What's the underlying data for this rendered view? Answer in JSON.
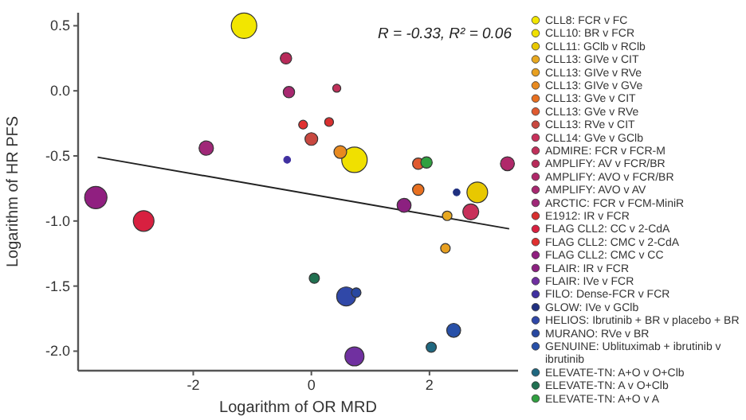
{
  "chart_data": {
    "type": "bubble",
    "xlabel": "Logarithm of OR MRD",
    "ylabel": "Logarithm of HR PFS",
    "annotations": [
      "R = -0.33, R² = 0.06"
    ],
    "xlim": [
      -3.95,
      3.5
    ],
    "ylim": [
      -2.15,
      0.6
    ],
    "xticks": [
      -2,
      0,
      2
    ],
    "yticks": [
      {
        "value": 0.5,
        "label": "0.5"
      },
      {
        "value": 0,
        "label": "0.0"
      },
      {
        "value": -0.5,
        "label": "-0.5"
      },
      {
        "value": -1,
        "label": "-1.0"
      },
      {
        "value": -1.5,
        "label": "-1.5"
      },
      {
        "value": -2,
        "label": "-2.0"
      }
    ],
    "grid": false,
    "legend": "right",
    "marker": "circle",
    "series": [
      {
        "name": "CLL8: FCR v FC",
        "color": "#f2e600",
        "x": [
          -1.14
        ],
        "values": [
          0.5
        ],
        "sizes": [
          1
        ]
      },
      {
        "name": "CLL10: BR v FCR",
        "color": "#f0e000",
        "x": [
          0.73
        ],
        "values": [
          -0.53
        ],
        "sizes": [
          1
        ]
      },
      {
        "name": "CLL11: GClb v RClb",
        "color": "#e8c800",
        "x": [
          2.81
        ],
        "values": [
          -0.78
        ],
        "sizes": [
          0.66
        ]
      },
      {
        "name": "CLL13: GIVe v CIT",
        "color": "#e8a820",
        "x": [
          2.3
        ],
        "values": [
          -0.96
        ],
        "sizes": [
          0.14
        ]
      },
      {
        "name": "CLL13: GIVe v RVe",
        "color": "#e8a020",
        "x": [
          2.27
        ],
        "values": [
          -1.21
        ],
        "sizes": [
          0.14
        ]
      },
      {
        "name": "CLL13: GIVe v GVe",
        "color": "#e88a20",
        "x": [
          0.49
        ],
        "values": [
          -0.47
        ],
        "sizes": [
          0.25
        ]
      },
      {
        "name": "CLL13: GVe v CIT",
        "color": "#e87020",
        "x": [
          1.81
        ],
        "values": [
          -0.76
        ],
        "sizes": [
          0.2
        ]
      },
      {
        "name": "CLL13: GVe v RVe",
        "color": "#e05a30",
        "x": [
          1.81
        ],
        "values": [
          -0.56
        ],
        "sizes": [
          0.2
        ]
      },
      {
        "name": "CLL13: RVe v CIT",
        "color": "#c84840",
        "x": [
          0
        ],
        "values": [
          -0.37
        ],
        "sizes": [
          0.25
        ]
      },
      {
        "name": "CLL14: GVe v GClb",
        "color": "#c8305a",
        "x": [
          2.7
        ],
        "values": [
          -0.93
        ],
        "sizes": [
          0.39
        ]
      },
      {
        "name": "ADMIRE: FCR v FCR-M",
        "color": "#c0305a",
        "x": [
          0.43
        ],
        "values": [
          0.02
        ],
        "sizes": [
          0.1
        ]
      },
      {
        "name": "AMPLIFY: AV v FCR/BR",
        "color": "#b82a5a",
        "x": [
          -0.43
        ],
        "values": [
          0.25
        ],
        "sizes": [
          0.2
        ]
      },
      {
        "name": "AMPLIFY: AVO v FCR/BR",
        "color": "#b0286a",
        "x": [
          3.32
        ],
        "values": [
          -0.56
        ],
        "sizes": [
          0.3
        ]
      },
      {
        "name": "AMPLIFY: AVO v AV",
        "color": "#a82870",
        "x": [
          -0.38
        ],
        "values": [
          -0.01
        ],
        "sizes": [
          0.2
        ]
      },
      {
        "name": "ARCTIC: FCR v FCM-MiniR",
        "color": "#a02878",
        "x": [
          -1.78
        ],
        "values": [
          -0.44
        ],
        "sizes": [
          0.32
        ]
      },
      {
        "name": "E1912: IR v FCR",
        "color": "#d83030",
        "x": [
          0.3
        ],
        "values": [
          -0.24
        ],
        "sizes": [
          0.12
        ]
      },
      {
        "name": "FLAG CLL2: CC v 2-CdA",
        "color": "#d82040",
        "x": [
          -2.84
        ],
        "values": [
          -1.0
        ],
        "sizes": [
          0.66
        ]
      },
      {
        "name": "FLAG CLL2: CMC v 2-CdA",
        "color": "#e03030",
        "x": [
          -0.14
        ],
        "values": [
          -0.26
        ],
        "sizes": [
          0.12
        ]
      },
      {
        "name": "FLAG CLL2: CMC v CC",
        "color": "#901f80",
        "x": [
          -3.65
        ],
        "values": [
          -0.82
        ],
        "sizes": [
          0.77
        ]
      },
      {
        "name": "FLAIR: IR v FCR",
        "color": "#8c2080",
        "x": [
          1.57
        ],
        "values": [
          -0.88
        ],
        "sizes": [
          0.3
        ]
      },
      {
        "name": "FLAIR: IVe v FCR",
        "color": "#7030a0",
        "x": [
          0.73
        ],
        "values": [
          -2.04
        ],
        "sizes": [
          0.56
        ]
      },
      {
        "name": "FILO: Dense-FCR v FCR",
        "color": "#4030a0",
        "x": [
          -0.41
        ],
        "values": [
          -0.53
        ],
        "sizes": [
          0.07
        ]
      },
      {
        "name": "GLOW: IVe v GClb",
        "color": "#203080",
        "x": [
          2.46
        ],
        "values": [
          -0.78
        ],
        "sizes": [
          0.07
        ]
      },
      {
        "name": "HELIOS: Ibrutinib + BR v placebo + BR",
        "color": "#3048a8",
        "x": [
          0.59
        ],
        "values": [
          -1.58
        ],
        "sizes": [
          0.56
        ]
      },
      {
        "name": "MURANO: RVe v BR",
        "color": "#2848a0",
        "x": [
          0.76
        ],
        "values": [
          -1.55
        ],
        "sizes": [
          0.14
        ]
      },
      {
        "name": "GENUINE: Ublituximab + ibrutinib v ibrutinib",
        "color": "#2850a8",
        "x": [
          2.41
        ],
        "values": [
          -1.84
        ],
        "sizes": [
          0.3
        ]
      },
      {
        "name": "ELEVATE-TN: A+O v O+Clb",
        "color": "#206880",
        "x": [
          2.03
        ],
        "values": [
          -1.97
        ],
        "sizes": [
          0.16
        ]
      },
      {
        "name": "ELEVATE-TN: A v O+Clb",
        "color": "#207050",
        "x": [
          0.05
        ],
        "values": [
          -1.44
        ],
        "sizes": [
          0.16
        ]
      },
      {
        "name": "ELEVATE-TN: A+O v A",
        "color": "#30a040",
        "x": [
          1.95
        ],
        "values": [
          -0.55
        ],
        "sizes": [
          0.2
        ]
      },
      {
        "type": "line",
        "marker": "none",
        "color": "#222222",
        "x": [
          -3.62,
          3.35
        ],
        "values": [
          -0.51,
          -1.06
        ]
      }
    ]
  }
}
